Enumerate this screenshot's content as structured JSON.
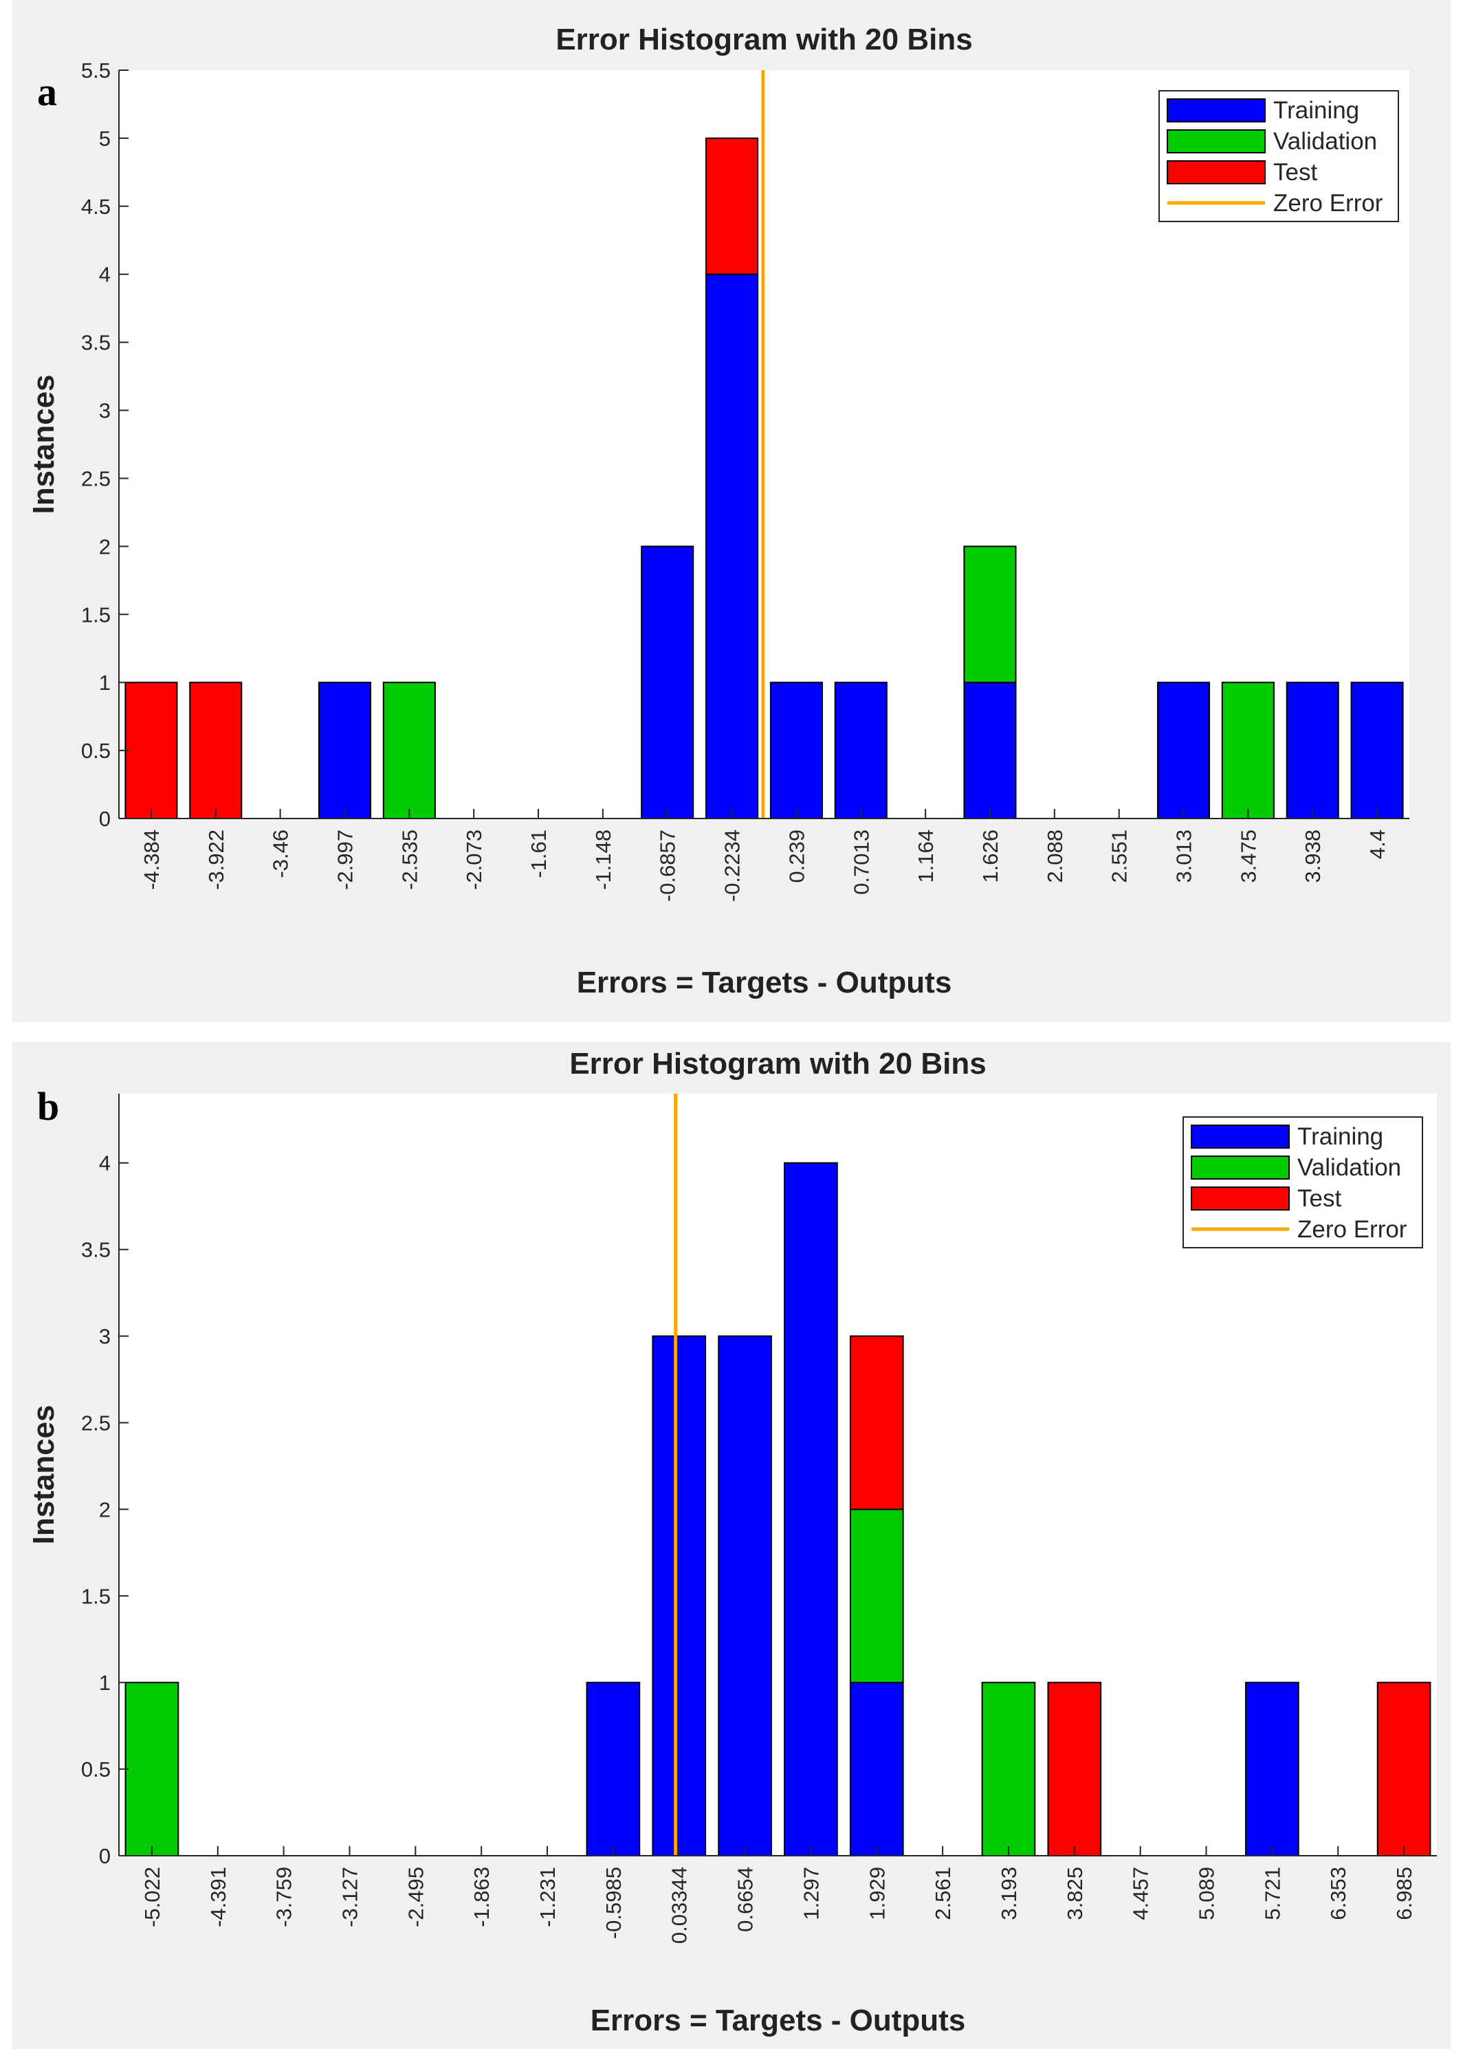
{
  "figure": {
    "panel_labels": [
      "a",
      "b"
    ]
  },
  "chart_data": [
    {
      "type": "bar",
      "stacked": true,
      "panel": "a",
      "title": "Error Histogram with 20 Bins",
      "xlabel": "Errors = Targets - Outputs",
      "ylabel": "Instances",
      "ylim": [
        0,
        5.5
      ],
      "yticks": [
        0,
        0.5,
        1,
        1.5,
        2,
        2.5,
        3,
        3.5,
        4,
        4.5,
        5,
        5.5
      ],
      "ytick_labels": [
        "0",
        "0.5",
        "1",
        "1.5",
        "2",
        "2.5",
        "3",
        "3.5",
        "4",
        "4.5",
        "5",
        "5.5"
      ],
      "categories": [
        "-4.384",
        "-3.922",
        "-3.46",
        "-2.997",
        "-2.535",
        "-2.073",
        "-1.61",
        "-1.148",
        "-0.6857",
        "-0.2234",
        "0.239",
        "0.7013",
        "1.164",
        "1.626",
        "2.088",
        "2.551",
        "3.013",
        "3.475",
        "3.938",
        "4.4"
      ],
      "series": [
        {
          "name": "Training",
          "color": "#0000ff",
          "values": [
            0,
            0,
            0,
            1,
            0,
            0,
            0,
            0,
            2,
            4,
            1,
            1,
            0,
            1,
            0,
            0,
            1,
            0,
            1,
            1
          ]
        },
        {
          "name": "Validation",
          "color": "#00cc00",
          "values": [
            0,
            0,
            0,
            0,
            1,
            0,
            0,
            0,
            0,
            0,
            0,
            0,
            0,
            1,
            0,
            0,
            0,
            1,
            0,
            0
          ]
        },
        {
          "name": "Test",
          "color": "#ff0000",
          "values": [
            1,
            1,
            0,
            0,
            0,
            0,
            0,
            0,
            0,
            1,
            0,
            0,
            0,
            0,
            0,
            0,
            0,
            0,
            0,
            0
          ]
        }
      ],
      "zero_error": {
        "name": "Zero Error",
        "color": "#ffa500",
        "x": 0
      },
      "legend_position": "top-right",
      "grid": false
    },
    {
      "type": "bar",
      "stacked": true,
      "panel": "b",
      "title": "Error Histogram with 20 Bins",
      "xlabel": "Errors = Targets - Outputs",
      "ylabel": "Instances",
      "ylim": [
        0,
        4.4
      ],
      "yticks": [
        0,
        0.5,
        1,
        1.5,
        2,
        2.5,
        3,
        3.5,
        4
      ],
      "ytick_labels": [
        "0",
        "0.5",
        "1",
        "1.5",
        "2",
        "2.5",
        "3",
        "3.5",
        "4"
      ],
      "categories": [
        "-5.022",
        "-4.391",
        "-3.759",
        "-3.127",
        "-2.495",
        "-1.863",
        "-1.231",
        "-0.5985",
        "0.03344",
        "0.6654",
        "1.297",
        "1.929",
        "2.561",
        "3.193",
        "3.825",
        "4.457",
        "5.089",
        "5.721",
        "6.353",
        "6.985"
      ],
      "series": [
        {
          "name": "Training",
          "color": "#0000ff",
          "values": [
            0,
            0,
            0,
            0,
            0,
            0,
            0,
            1,
            3,
            3,
            4,
            1,
            0,
            0,
            0,
            0,
            0,
            1,
            0,
            0
          ]
        },
        {
          "name": "Validation",
          "color": "#00cc00",
          "values": [
            1,
            0,
            0,
            0,
            0,
            0,
            0,
            0,
            0,
            0,
            0,
            1,
            0,
            1,
            0,
            0,
            0,
            0,
            0,
            0
          ]
        },
        {
          "name": "Test",
          "color": "#ff0000",
          "values": [
            0,
            0,
            0,
            0,
            0,
            0,
            0,
            0,
            0,
            0,
            0,
            1,
            0,
            0,
            1,
            0,
            0,
            0,
            0,
            1
          ]
        }
      ],
      "zero_error": {
        "name": "Zero Error",
        "color": "#ffa500",
        "x": 0
      },
      "legend_position": "top-right",
      "grid": false
    }
  ]
}
